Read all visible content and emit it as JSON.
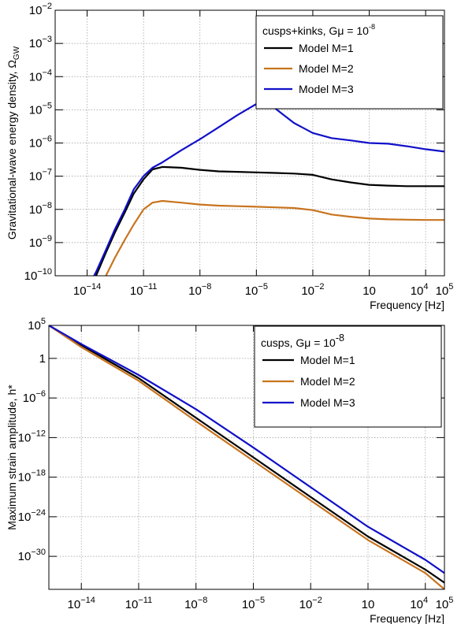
{
  "chart_data": [
    {
      "type": "line",
      "xscale": "log",
      "yscale": "log",
      "xlim": [
        2e-16,
        100000.0
      ],
      "ylim": [
        1e-10,
        0.01
      ],
      "xlabel": "Frequency [Hz]",
      "ylabel_main": "Gravitational-wave energy density, Ω",
      "ylabel_sub": "GW",
      "grid": true,
      "legend_position": "top-right",
      "legend_title_base": "cusps+kinks, Gμ = 10",
      "legend_title_exp": "-8",
      "x_ticks": [
        {
          "v": -14,
          "base": "10",
          "exp": "−14"
        },
        {
          "v": -11,
          "base": "10",
          "exp": "−11"
        },
        {
          "v": -8,
          "base": "10",
          "exp": "−8"
        },
        {
          "v": -5,
          "base": "10",
          "exp": "−5"
        },
        {
          "v": -2,
          "base": "10",
          "exp": "−2"
        },
        {
          "v": 1,
          "base": "10",
          "exp": ""
        },
        {
          "v": 4,
          "base": "10",
          "exp": "4"
        },
        {
          "v": 5,
          "base": "10",
          "exp": "5"
        }
      ],
      "y_ticks": [
        {
          "v": -10,
          "base": "10",
          "exp": "−10"
        },
        {
          "v": -9,
          "base": "10",
          "exp": "−9"
        },
        {
          "v": -8,
          "base": "10",
          "exp": "−8"
        },
        {
          "v": -7,
          "base": "10",
          "exp": "−7"
        },
        {
          "v": -6,
          "base": "10",
          "exp": "−6"
        },
        {
          "v": -5,
          "base": "10",
          "exp": "−5"
        },
        {
          "v": -4,
          "base": "10",
          "exp": "−4"
        },
        {
          "v": -3,
          "base": "10",
          "exp": "−3"
        },
        {
          "v": -2,
          "base": "10",
          "exp": "−2"
        }
      ],
      "series": [
        {
          "name": "Model M=1",
          "color": "#000000",
          "x": [
            1e-14,
            3e-14,
            1e-13,
            3e-13,
            1e-12,
            3e-12,
            1e-11,
            3e-11,
            1e-10,
            1e-09,
            1e-08,
            1e-07,
            1e-06,
            1e-05,
            0.0001,
            0.001,
            0.01,
            0.1,
            1,
            10,
            100,
            1000,
            10000.0,
            100000.0
          ],
          "y": [
            3e-11,
            1e-10,
            5e-10,
            2e-09,
            8e-09,
            3e-08,
            8e-08,
            1.6e-07,
            1.9e-07,
            1.8e-07,
            1.55e-07,
            1.4e-07,
            1.35e-07,
            1.3e-07,
            1.25e-07,
            1.2e-07,
            1.1e-07,
            8e-08,
            6.5e-08,
            5.5e-08,
            5.2e-08,
            5e-08,
            5e-08,
            5e-08
          ]
        },
        {
          "name": "Model M=2",
          "color": "#c8741e",
          "x": [
            3e-14,
            1e-13,
            3e-13,
            1e-12,
            3e-12,
            1e-11,
            3e-11,
            1e-10,
            1e-09,
            1e-08,
            1e-07,
            1e-06,
            1e-05,
            0.0001,
            0.001,
            0.01,
            0.1,
            1,
            10,
            100,
            1000,
            10000.0,
            100000.0
          ],
          "y": [
            3e-11,
            1e-10,
            3.5e-10,
            1.2e-09,
            3.5e-09,
            1e-08,
            1.6e-08,
            1.8e-08,
            1.6e-08,
            1.4e-08,
            1.3e-08,
            1.25e-08,
            1.2e-08,
            1.15e-08,
            1.1e-08,
            9.5e-09,
            7e-09,
            6e-09,
            5.3e-09,
            5e-09,
            4.9e-09,
            4.8e-09,
            4.8e-09
          ]
        },
        {
          "name": "Model M=3",
          "color": "#1010c8",
          "x": [
            1e-14,
            3e-14,
            1e-13,
            3e-13,
            1e-12,
            3e-12,
            1e-11,
            3e-11,
            1e-10,
            1e-09,
            1e-08,
            1e-07,
            1e-06,
            1e-05,
            3e-05,
            0.0001,
            0.001,
            0.01,
            0.1,
            1,
            10,
            100,
            1000,
            10000.0,
            100000.0
          ],
          "y": [
            4e-11,
            1.3e-10,
            6e-10,
            2.5e-09,
            1e-08,
            4e-08,
            1e-07,
            1.8e-07,
            2.6e-07,
            6e-07,
            1.3e-06,
            3e-06,
            7e-06,
            1.5e-05,
            1.7e-05,
            1.1e-05,
            4e-06,
            2e-06,
            1.4e-06,
            1.2e-06,
            1e-06,
            9.5e-07,
            8e-07,
            6.5e-07,
            5.5e-07
          ]
        }
      ]
    },
    {
      "type": "line",
      "xscale": "log",
      "yscale": "log",
      "xlim": [
        2e-16,
        100000.0
      ],
      "ylim": [
        1e-35,
        100000.0
      ],
      "xlabel": "Frequency [Hz]",
      "ylabel_main": "Maximum strain amplitude, h*",
      "grid": true,
      "legend_position": "top-right",
      "legend_title_base": "cusps, Gμ = 10",
      "legend_title_exp": "-8",
      "x_ticks": [
        {
          "v": -14,
          "base": "10",
          "exp": "−14"
        },
        {
          "v": -11,
          "base": "10",
          "exp": "−11"
        },
        {
          "v": -8,
          "base": "10",
          "exp": "−8"
        },
        {
          "v": -5,
          "base": "10",
          "exp": "−5"
        },
        {
          "v": -2,
          "base": "10",
          "exp": "−2"
        },
        {
          "v": 1,
          "base": "10",
          "exp": ""
        },
        {
          "v": 4,
          "base": "10",
          "exp": "4"
        },
        {
          "v": 5,
          "base": "10",
          "exp": "5"
        }
      ],
      "y_ticks": [
        {
          "v": -30,
          "base": "10",
          "exp": "−30"
        },
        {
          "v": -24,
          "base": "10",
          "exp": "−24"
        },
        {
          "v": -18,
          "base": "10",
          "exp": "−18"
        },
        {
          "v": -12,
          "base": "10",
          "exp": "−12"
        },
        {
          "v": -6,
          "base": "10",
          "exp": "−6"
        },
        {
          "v": 0,
          "base": "1",
          "exp": ""
        },
        {
          "v": 5,
          "base": "10",
          "exp": "5"
        }
      ],
      "series": [
        {
          "name": "Model M=1",
          "color": "#000000",
          "x": [
            2e-16,
            1e-14,
            1e-11,
            1e-08,
            1e-05,
            0.01,
            10,
            10000.0,
            100000.0
          ],
          "y": [
            100000.0,
            100.0,
            0.001,
            1e-09,
            1e-15,
            1e-21,
            1e-27,
            1e-32,
            1e-34
          ]
        },
        {
          "name": "Model M=2",
          "color": "#c8741e",
          "x": [
            2e-16,
            1e-14,
            1e-11,
            1e-08,
            1e-05,
            0.01,
            10,
            10000.0,
            100000.0
          ],
          "y": [
            100000.0,
            50.0,
            0.0004,
            3e-10,
            3e-16,
            3e-22,
            3e-28,
            3e-33,
            1e-35
          ]
        },
        {
          "name": "Model M=3",
          "color": "#1010c8",
          "x": [
            2e-16,
            1e-14,
            1e-11,
            1e-08,
            1e-05,
            0.01,
            10,
            10000.0,
            100000.0
          ],
          "y": [
            100000.0,
            150.0,
            0.003,
            2e-08,
            3e-14,
            3e-20,
            3e-26,
            3e-31,
            3e-33
          ]
        }
      ]
    }
  ]
}
